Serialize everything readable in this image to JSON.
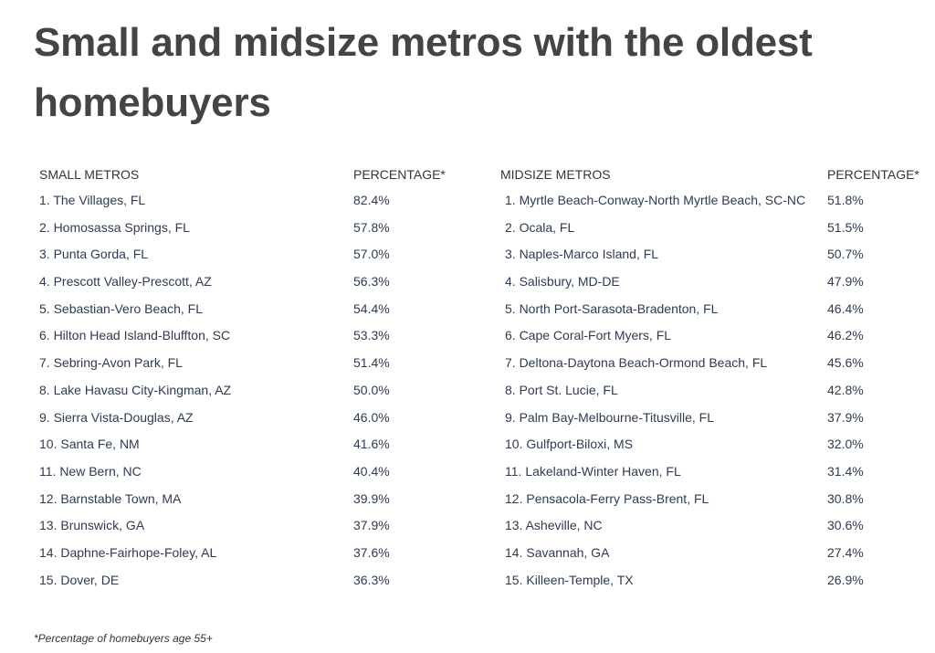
{
  "title": "Small and midsize metros with the oldest homebuyers",
  "footnote": "*Percentage of homebuyers age 55+",
  "chart_data": [
    {
      "type": "table",
      "columns": [
        "SMALL METROS",
        "PERCENTAGE*"
      ],
      "rows": [
        [
          "1. The Villages, FL",
          "82.4%"
        ],
        [
          "2. Homosassa Springs, FL",
          "57.8%"
        ],
        [
          "3. Punta Gorda, FL",
          "57.0%"
        ],
        [
          "4. Prescott Valley-Prescott, AZ",
          "56.3%"
        ],
        [
          "5. Sebastian-Vero Beach, FL",
          "54.4%"
        ],
        [
          "6. Hilton Head Island-Bluffton, SC",
          "53.3%"
        ],
        [
          "7. Sebring-Avon Park, FL",
          "51.4%"
        ],
        [
          "8. Lake Havasu City-Kingman, AZ",
          "50.0%"
        ],
        [
          "9. Sierra Vista-Douglas, AZ",
          "46.0%"
        ],
        [
          "10. Santa Fe, NM",
          "41.6%"
        ],
        [
          "11. New Bern, NC",
          "40.4%"
        ],
        [
          "12. Barnstable Town, MA",
          "39.9%"
        ],
        [
          "13. Brunswick, GA",
          "37.9%"
        ],
        [
          "14. Daphne-Fairhope-Foley, AL",
          "37.6%"
        ],
        [
          "15. Dover, DE",
          "36.3%"
        ]
      ]
    },
    {
      "type": "table",
      "columns": [
        "MIDSIZE METROS",
        "PERCENTAGE*"
      ],
      "rows": [
        [
          "1. Myrtle Beach-Conway-North Myrtle Beach, SC-NC",
          "51.8%"
        ],
        [
          "2. Ocala, FL",
          "51.5%"
        ],
        [
          "3. Naples-Marco Island, FL",
          "50.7%"
        ],
        [
          "4. Salisbury, MD-DE",
          "47.9%"
        ],
        [
          "5. North Port-Sarasota-Bradenton, FL",
          "46.4%"
        ],
        [
          "6. Cape Coral-Fort Myers, FL",
          "46.2%"
        ],
        [
          "7. Deltona-Daytona Beach-Ormond Beach, FL",
          "45.6%"
        ],
        [
          "8. Port St. Lucie, FL",
          "42.8%"
        ],
        [
          "9. Palm Bay-Melbourne-Titusville, FL",
          "37.9%"
        ],
        [
          "10. Gulfport-Biloxi, MS",
          "32.0%"
        ],
        [
          "11. Lakeland-Winter Haven, FL",
          "31.4%"
        ],
        [
          "12. Pensacola-Ferry Pass-Brent, FL",
          "30.8%"
        ],
        [
          "13. Asheville, NC",
          "30.6%"
        ],
        [
          "14. Savannah, GA",
          "27.4%"
        ],
        [
          "15. Killeen-Temple, TX",
          "26.9%"
        ]
      ]
    }
  ]
}
